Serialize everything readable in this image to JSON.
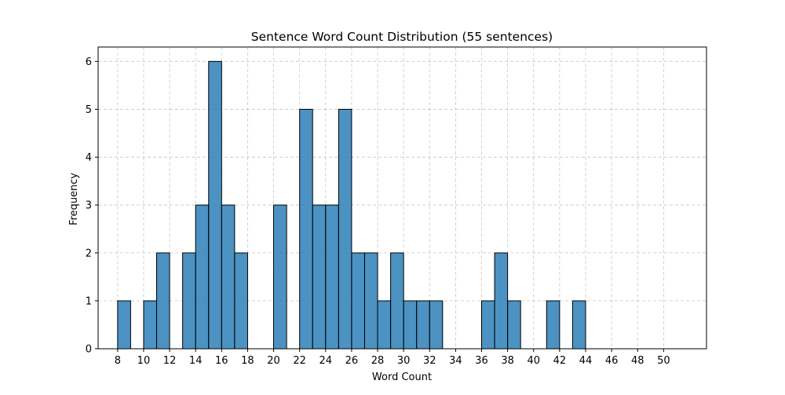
{
  "chart_data": {
    "type": "bar",
    "title": "Sentence Word Count Distribution (55 sentences)",
    "xlabel": "Word Count",
    "ylabel": "Frequency",
    "bar_color": "#1f77b4",
    "edge_color": "#000000",
    "grid": true,
    "bin_width": 1,
    "bins": [
      {
        "x": 8,
        "count": 1
      },
      {
        "x": 10,
        "count": 1
      },
      {
        "x": 11,
        "count": 2
      },
      {
        "x": 13,
        "count": 2
      },
      {
        "x": 14,
        "count": 3
      },
      {
        "x": 15,
        "count": 6
      },
      {
        "x": 16,
        "count": 3
      },
      {
        "x": 17,
        "count": 2
      },
      {
        "x": 20,
        "count": 3
      },
      {
        "x": 22,
        "count": 5
      },
      {
        "x": 23,
        "count": 3
      },
      {
        "x": 24,
        "count": 3
      },
      {
        "x": 25,
        "count": 5
      },
      {
        "x": 26,
        "count": 2
      },
      {
        "x": 27,
        "count": 2
      },
      {
        "x": 28,
        "count": 1
      },
      {
        "x": 29,
        "count": 2
      },
      {
        "x": 30,
        "count": 1
      },
      {
        "x": 31,
        "count": 1
      },
      {
        "x": 32,
        "count": 1
      },
      {
        "x": 36,
        "count": 1
      },
      {
        "x": 37,
        "count": 2
      },
      {
        "x": 38,
        "count": 1
      },
      {
        "x": 41,
        "count": 1
      },
      {
        "x": 43,
        "count": 1
      }
    ],
    "xlim": [
      6.5,
      53.3
    ],
    "ylim": [
      0,
      6.3
    ],
    "xticks": [
      8,
      10,
      12,
      14,
      16,
      18,
      20,
      22,
      24,
      26,
      28,
      30,
      32,
      34,
      36,
      38,
      40,
      42,
      44,
      46,
      48,
      50
    ],
    "yticks": [
      0,
      1,
      2,
      3,
      4,
      5,
      6
    ]
  }
}
